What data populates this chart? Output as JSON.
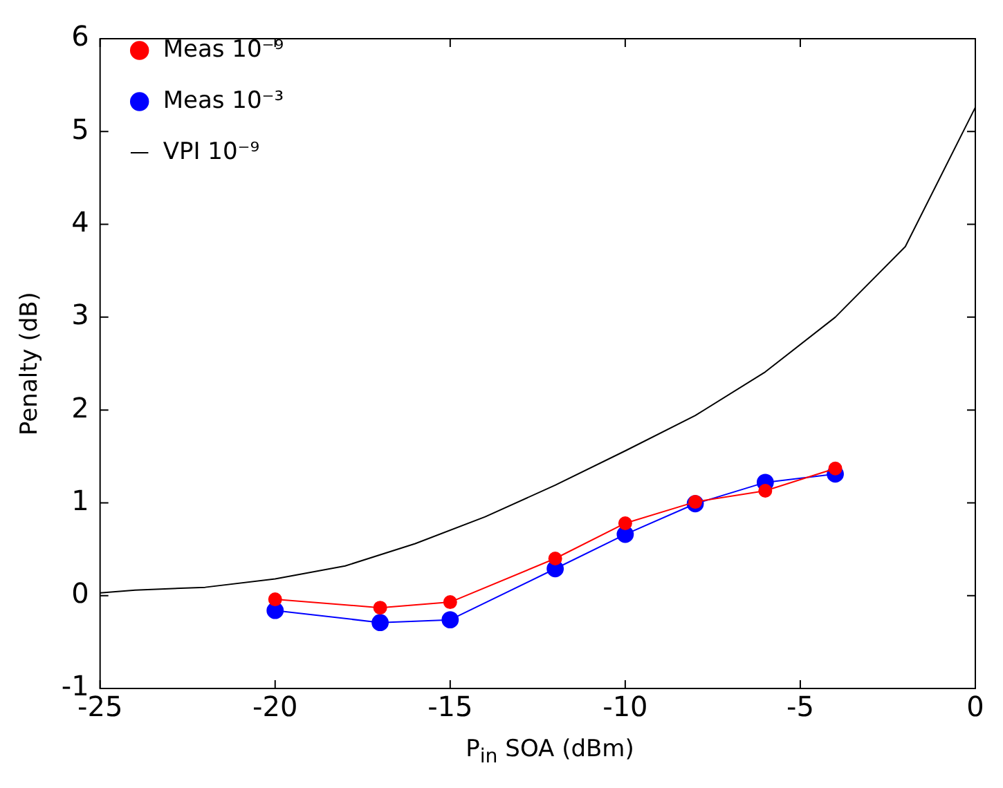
{
  "chart_data": {
    "type": "line",
    "xlabel": "P$_{in}$ SOA (dBm)",
    "ylabel": "Penalty (dB)",
    "xlim": [
      -25,
      0
    ],
    "ylim": [
      -1,
      6
    ],
    "xticks": [
      -25,
      -20,
      -15,
      -10,
      -5,
      0
    ],
    "yticks": [
      -1,
      0,
      1,
      2,
      3,
      4,
      5,
      6
    ],
    "grid": false,
    "legend": "top left",
    "series": [
      {
        "name": "Meas 10⁻⁹",
        "color": "#ff0000",
        "marker": "circle",
        "x": [
          -20,
          -17,
          -15,
          -12,
          -10,
          -8,
          -6,
          -4
        ],
        "values": [
          -0.04,
          -0.13,
          -0.07,
          0.4,
          0.78,
          1.01,
          1.13,
          1.37
        ]
      },
      {
        "name": "Meas 10⁻³",
        "color": "#0000ff",
        "marker": "circle",
        "x": [
          -20,
          -17,
          -15,
          -12,
          -10,
          -8,
          -6,
          -4
        ],
        "values": [
          -0.16,
          -0.29,
          -0.26,
          0.29,
          0.66,
          0.99,
          1.22,
          1.31
        ]
      },
      {
        "name": "VPI 10⁻⁹",
        "color": "#000000",
        "marker": "none",
        "x": [
          -25,
          -24,
          -22,
          -20,
          -18,
          -16,
          -14,
          -12,
          -10,
          -8,
          -6,
          -4,
          -2,
          0
        ],
        "values": [
          0.03,
          0.06,
          0.09,
          0.18,
          0.32,
          0.56,
          0.85,
          1.19,
          1.56,
          1.94,
          2.41,
          3.0,
          3.76,
          5.26
        ]
      }
    ]
  }
}
